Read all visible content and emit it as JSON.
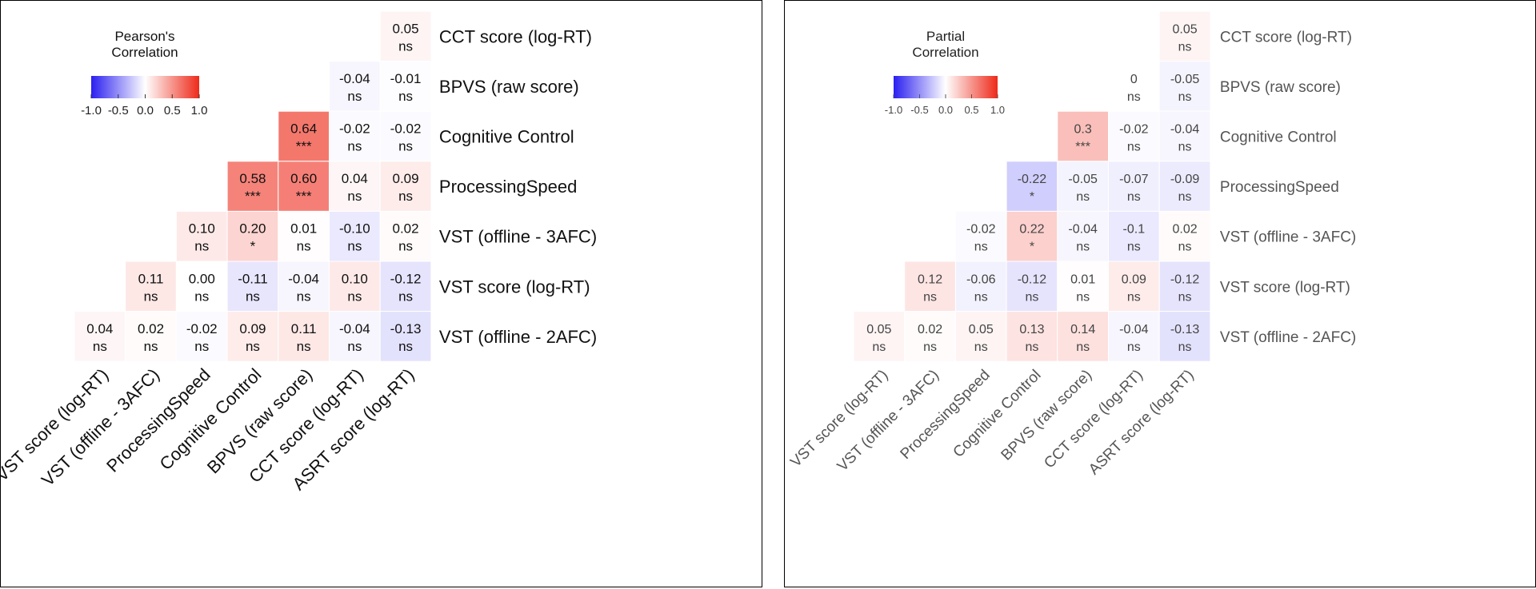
{
  "chart_data": [
    {
      "type": "heatmap",
      "legend": {
        "title_lines": [
          "Pearson's",
          "Correlation"
        ],
        "ticks": [
          "-1.0",
          "-0.5",
          "0.0",
          "0.5",
          "1.0"
        ],
        "range": [
          -1,
          1
        ],
        "colors": {
          "low": "#2b1ff0",
          "mid": "#ffffff",
          "high": "#ee2a1a"
        }
      },
      "row_labels": [
        "CCT score (log-RT)",
        "BPVS (raw score)",
        "Cognitive Control",
        "ProcessingSpeed",
        "VST (offline - 3AFC)",
        "VST score (log-RT)",
        "VST (offline - 2AFC)"
      ],
      "col_labels": [
        "VST score (log-RT)",
        "VST (offline - 3AFC)",
        "ProcessingSpeed",
        "Cognitive Control",
        "BPVS (raw score)",
        "CCT score (log-RT)",
        "ASRT score (log-RT)"
      ],
      "values": [
        [
          null,
          null,
          null,
          null,
          null,
          null,
          0.05
        ],
        [
          null,
          null,
          null,
          null,
          null,
          -0.04,
          -0.01
        ],
        [
          null,
          null,
          null,
          null,
          0.64,
          -0.02,
          -0.02
        ],
        [
          null,
          null,
          null,
          0.58,
          0.6,
          0.04,
          0.09
        ],
        [
          null,
          null,
          0.1,
          0.2,
          0.01,
          -0.1,
          0.02
        ],
        [
          null,
          0.11,
          0.0,
          -0.11,
          -0.04,
          0.1,
          -0.12
        ],
        [
          0.04,
          0.02,
          -0.02,
          0.09,
          0.11,
          -0.04,
          -0.13
        ]
      ],
      "labels": [
        [
          null,
          null,
          null,
          null,
          null,
          null,
          "0.05"
        ],
        [
          null,
          null,
          null,
          null,
          null,
          "-0.04",
          "-0.01"
        ],
        [
          null,
          null,
          null,
          null,
          "0.64",
          "-0.02",
          "-0.02"
        ],
        [
          null,
          null,
          null,
          "0.58",
          "0.60",
          "0.04",
          "0.09"
        ],
        [
          null,
          null,
          "0.10",
          "0.20",
          "0.01",
          "-0.10",
          "0.02"
        ],
        [
          null,
          "0.11",
          "0.00",
          "-0.11",
          "-0.04",
          "0.10",
          "-0.12"
        ],
        [
          "0.04",
          "0.02",
          "-0.02",
          "0.09",
          "0.11",
          "-0.04",
          "-0.13"
        ]
      ],
      "significance": [
        [
          null,
          null,
          null,
          null,
          null,
          null,
          "ns"
        ],
        [
          null,
          null,
          null,
          null,
          null,
          "ns",
          "ns"
        ],
        [
          null,
          null,
          null,
          null,
          "***",
          "ns",
          "ns"
        ],
        [
          null,
          null,
          null,
          "***",
          "***",
          "ns",
          "ns"
        ],
        [
          null,
          null,
          "ns",
          "*",
          "ns",
          "ns",
          "ns"
        ],
        [
          null,
          "ns",
          "ns",
          "ns",
          "ns",
          "ns",
          "ns"
        ],
        [
          "ns",
          "ns",
          "ns",
          "ns",
          "ns",
          "ns",
          "ns"
        ]
      ],
      "text_color": "#111111"
    },
    {
      "type": "heatmap",
      "legend": {
        "title_lines": [
          "Partial",
          "Correlation"
        ],
        "ticks": [
          "-1.0",
          "-0.5",
          "0.0",
          "0.5",
          "1.0"
        ],
        "range": [
          -1,
          1
        ],
        "colors": {
          "low": "#2b1ff0",
          "mid": "#ffffff",
          "high": "#ee2a1a"
        }
      },
      "row_labels": [
        "CCT score (log-RT)",
        "BPVS (raw score)",
        "Cognitive Control",
        "ProcessingSpeed",
        "VST (offline - 3AFC)",
        "VST score (log-RT)",
        "VST (offline - 2AFC)"
      ],
      "col_labels": [
        "VST score (log-RT)",
        "VST (offline - 3AFC)",
        "ProcessingSpeed",
        "Cognitive Control",
        "BPVS (raw score)",
        "CCT score (log-RT)",
        "ASRT score (log-RT)"
      ],
      "values": [
        [
          null,
          null,
          null,
          null,
          null,
          null,
          0.05
        ],
        [
          null,
          null,
          null,
          null,
          null,
          0,
          -0.05
        ],
        [
          null,
          null,
          null,
          null,
          0.3,
          -0.02,
          -0.04
        ],
        [
          null,
          null,
          null,
          -0.22,
          -0.05,
          -0.07,
          -0.09
        ],
        [
          null,
          null,
          -0.02,
          0.22,
          -0.04,
          -0.1,
          0.02
        ],
        [
          null,
          0.12,
          -0.06,
          -0.12,
          0.01,
          0.09,
          -0.12
        ],
        [
          0.05,
          0.02,
          0.05,
          0.13,
          0.14,
          -0.04,
          -0.13
        ]
      ],
      "labels": [
        [
          null,
          null,
          null,
          null,
          null,
          null,
          "0.05"
        ],
        [
          null,
          null,
          null,
          null,
          null,
          "0",
          "-0.05"
        ],
        [
          null,
          null,
          null,
          null,
          "0.3",
          "-0.02",
          "-0.04"
        ],
        [
          null,
          null,
          null,
          "-0.22",
          "-0.05",
          "-0.07",
          "-0.09"
        ],
        [
          null,
          null,
          "-0.02",
          "0.22",
          "-0.04",
          "-0.1",
          "0.02"
        ],
        [
          null,
          "0.12",
          "-0.06",
          "-0.12",
          "0.01",
          "0.09",
          "-0.12"
        ],
        [
          "0.05",
          "0.02",
          "0.05",
          "0.13",
          "0.14",
          "-0.04",
          "-0.13"
        ]
      ],
      "significance": [
        [
          null,
          null,
          null,
          null,
          null,
          null,
          "ns"
        ],
        [
          null,
          null,
          null,
          null,
          null,
          "ns",
          "ns"
        ],
        [
          null,
          null,
          null,
          null,
          "***",
          "ns",
          "ns"
        ],
        [
          null,
          null,
          null,
          "*",
          "ns",
          "ns",
          "ns"
        ],
        [
          null,
          null,
          "ns",
          "*",
          "ns",
          "ns",
          "ns"
        ],
        [
          null,
          "ns",
          "ns",
          "ns",
          "ns",
          "ns",
          "ns"
        ],
        [
          "ns",
          "ns",
          "ns",
          "ns",
          "ns",
          "ns",
          "ns"
        ]
      ],
      "text_color": "#444444"
    }
  ]
}
